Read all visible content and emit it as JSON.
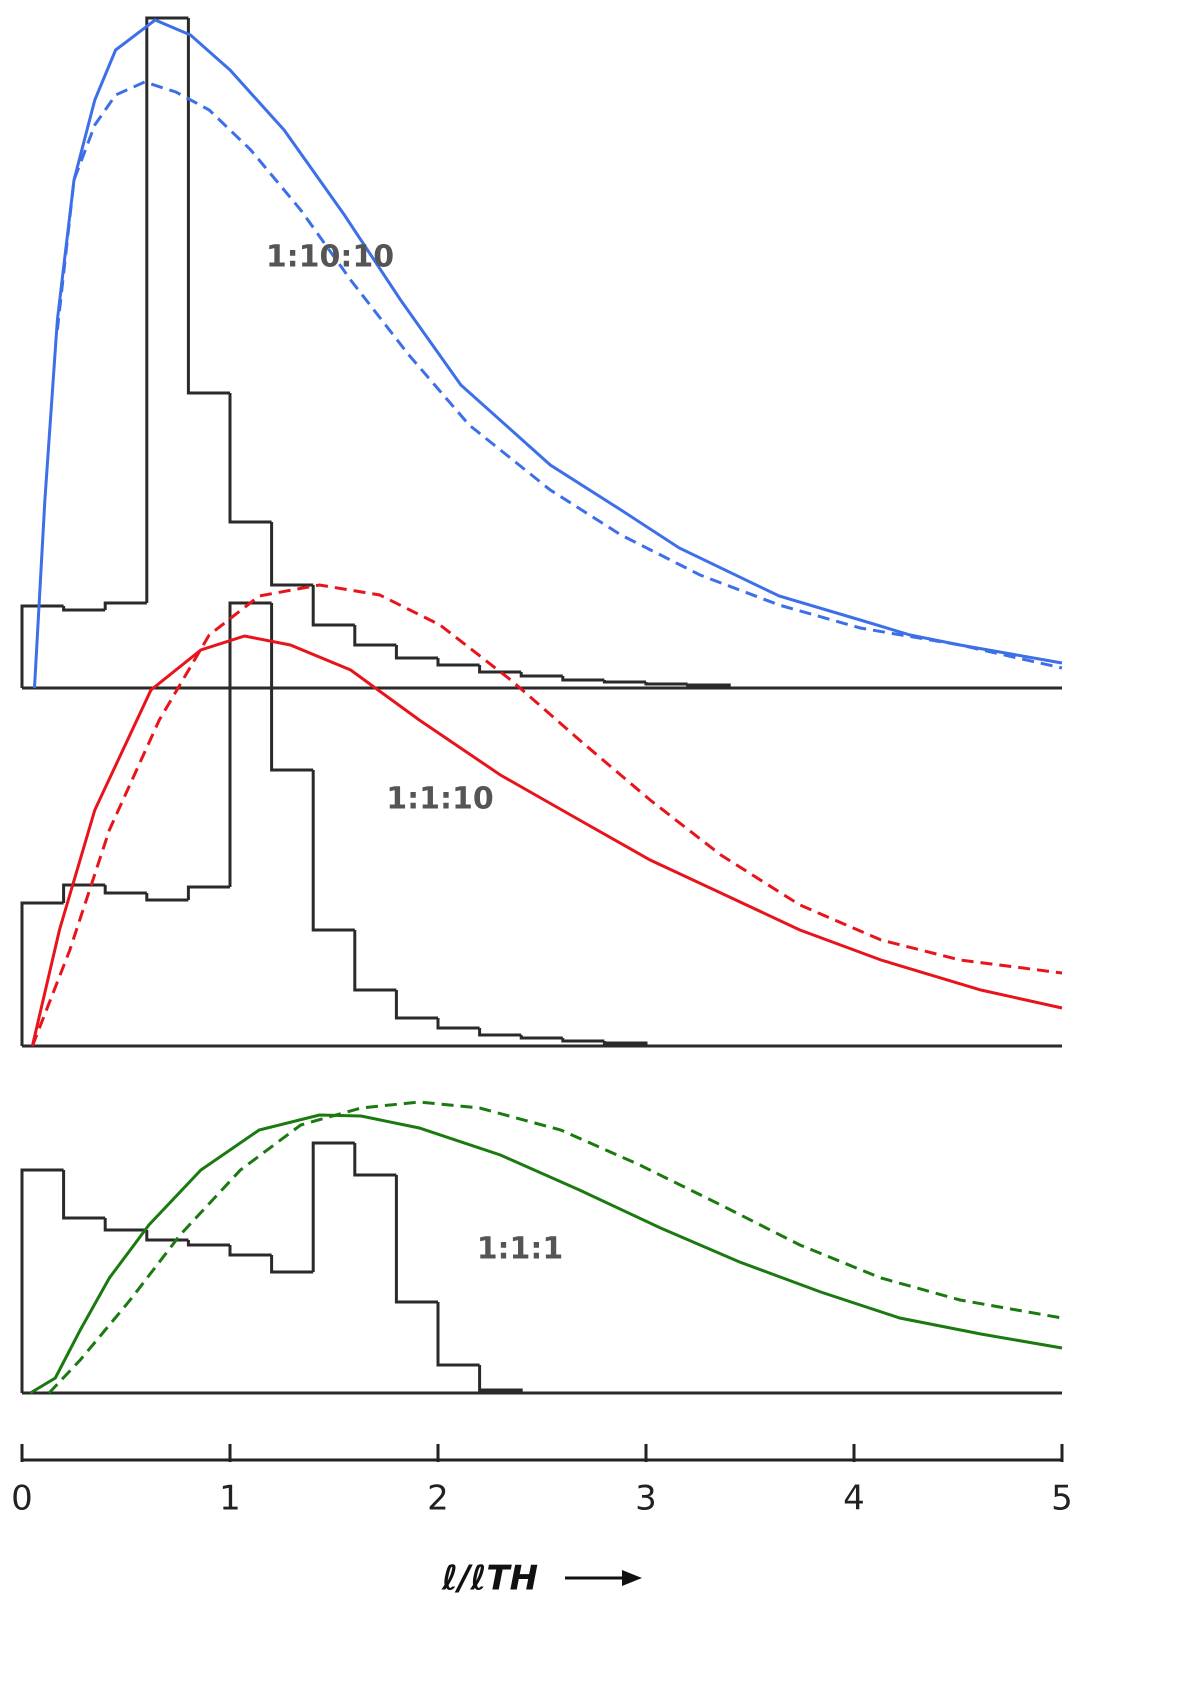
{
  "chart_data": [
    {
      "type": "histogram",
      "annotation": "1:10:10",
      "xlim": [
        0,
        5
      ],
      "ylim": [
        0,
        6.8
      ],
      "hist_color": "#2a2a2a",
      "bins": [
        0,
        0.2,
        0.4,
        0.6,
        0.8,
        1.0,
        1.2,
        1.4,
        1.6,
        1.8,
        2.0,
        2.2,
        2.4,
        2.6,
        2.8,
        3.0,
        3.2,
        3.4
      ],
      "counts": [
        0.82,
        0.78,
        0.85,
        6.7,
        2.95,
        1.66,
        1.03,
        0.63,
        0.43,
        0.3,
        0.23,
        0.16,
        0.12,
        0.08,
        0.06,
        0.04,
        0.03
      ],
      "series": [
        {
          "color": "#3c6fe8",
          "dash": false,
          "x": [
            0.06,
            0.11,
            0.17,
            0.25,
            0.35,
            0.45,
            0.64,
            0.81,
            1.0,
            1.26,
            1.55,
            1.82,
            2.11,
            2.54,
            2.88,
            3.16,
            3.64,
            4.03,
            4.27,
            4.51,
            5.0
          ],
          "values": [
            0,
            1.88,
            3.68,
            5.08,
            5.88,
            6.38,
            6.68,
            6.53,
            6.18,
            5.58,
            4.73,
            3.88,
            3.03,
            2.23,
            1.78,
            1.4,
            0.92,
            0.68,
            0.53,
            0.43,
            0.25
          ]
        },
        {
          "color": "#3c6fe8",
          "dash": true,
          "x": [
            0.17,
            0.25,
            0.35,
            0.45,
            0.59,
            0.74,
            0.9,
            1.1,
            1.34,
            1.58,
            1.86,
            2.15,
            2.54,
            2.88,
            3.26,
            3.64,
            4.03,
            4.51,
            5.0
          ],
          "values": [
            3.58,
            5.08,
            5.63,
            5.93,
            6.06,
            5.96,
            5.78,
            5.38,
            4.78,
            4.08,
            3.33,
            2.63,
            1.98,
            1.53,
            1.13,
            0.83,
            0.6,
            0.43,
            0.2
          ]
        }
      ]
    },
    {
      "type": "histogram",
      "annotation": "1:1:10",
      "xlim": [
        0,
        5
      ],
      "ylim": [
        0,
        4.7
      ],
      "hist_color": "#2a2a2a",
      "bins": [
        0,
        0.2,
        0.4,
        0.6,
        0.8,
        1.0,
        1.2,
        1.4,
        1.6,
        1.8,
        2.0,
        2.2,
        2.4,
        2.6,
        2.8,
        3.0
      ],
      "counts": [
        1.43,
        1.61,
        1.53,
        1.46,
        1.59,
        4.43,
        2.76,
        1.16,
        0.56,
        0.28,
        0.18,
        0.11,
        0.08,
        0.05,
        0.03
      ],
      "series": [
        {
          "color": "#e8141c",
          "dash": false,
          "x": [
            0.05,
            0.18,
            0.35,
            0.62,
            0.86,
            1.07,
            1.29,
            1.58,
            1.91,
            2.3,
            2.68,
            3.02,
            3.36,
            3.74,
            4.13,
            4.61,
            5.0
          ],
          "values": [
            0,
            1.16,
            2.36,
            3.56,
            3.96,
            4.1,
            4.01,
            3.76,
            3.26,
            2.71,
            2.26,
            1.86,
            1.53,
            1.16,
            0.86,
            0.56,
            0.38
          ]
        },
        {
          "color": "#e8141c",
          "dash": true,
          "x": [
            0.05,
            0.23,
            0.42,
            0.66,
            0.9,
            1.14,
            1.43,
            1.72,
            2.01,
            2.35,
            2.68,
            3.02,
            3.36,
            3.74,
            4.13,
            4.51,
            5.0
          ],
          "values": [
            0,
            0.96,
            2.16,
            3.26,
            4.11,
            4.5,
            4.61,
            4.51,
            4.21,
            3.66,
            3.06,
            2.46,
            1.91,
            1.41,
            1.06,
            0.86,
            0.73
          ]
        }
      ]
    },
    {
      "type": "histogram",
      "annotation": "1:1:1",
      "xlim": [
        0,
        5
      ],
      "ylim": [
        0,
        3.2
      ],
      "hist_color": "#2a2a2a",
      "bins": [
        0,
        0.2,
        0.4,
        0.6,
        0.8,
        1.0,
        1.2,
        1.4,
        1.6,
        1.8,
        2.0,
        2.2,
        2.4
      ],
      "counts": [
        2.23,
        1.75,
        1.63,
        1.53,
        1.48,
        1.38,
        1.21,
        2.5,
        2.18,
        0.91,
        0.28,
        0.03
      ],
      "series": [
        {
          "color": "#1a7a10",
          "dash": false,
          "x": [
            0.04,
            0.16,
            0.28,
            0.42,
            0.61,
            0.86,
            1.14,
            1.43,
            1.63,
            1.91,
            2.3,
            2.68,
            3.07,
            3.45,
            3.84,
            4.22,
            4.61,
            5.0
          ],
          "values": [
            0,
            0.15,
            0.63,
            1.15,
            1.68,
            2.23,
            2.63,
            2.78,
            2.77,
            2.65,
            2.38,
            2.03,
            1.65,
            1.31,
            1.01,
            0.75,
            0.59,
            0.45
          ]
        },
        {
          "color": "#1a7a10",
          "dash": true,
          "x": [
            0.13,
            0.28,
            0.52,
            0.76,
            1.05,
            1.34,
            1.63,
            1.91,
            2.2,
            2.59,
            2.97,
            3.36,
            3.74,
            4.13,
            4.51,
            5.0
          ],
          "values": [
            0,
            0.33,
            0.93,
            1.58,
            2.23,
            2.68,
            2.85,
            2.91,
            2.85,
            2.63,
            2.28,
            1.88,
            1.48,
            1.15,
            0.93,
            0.75
          ]
        }
      ],
      "xticks": [
        0,
        1,
        2,
        3,
        4,
        5
      ],
      "xlabel": "ℓ/ℓTH"
    }
  ]
}
